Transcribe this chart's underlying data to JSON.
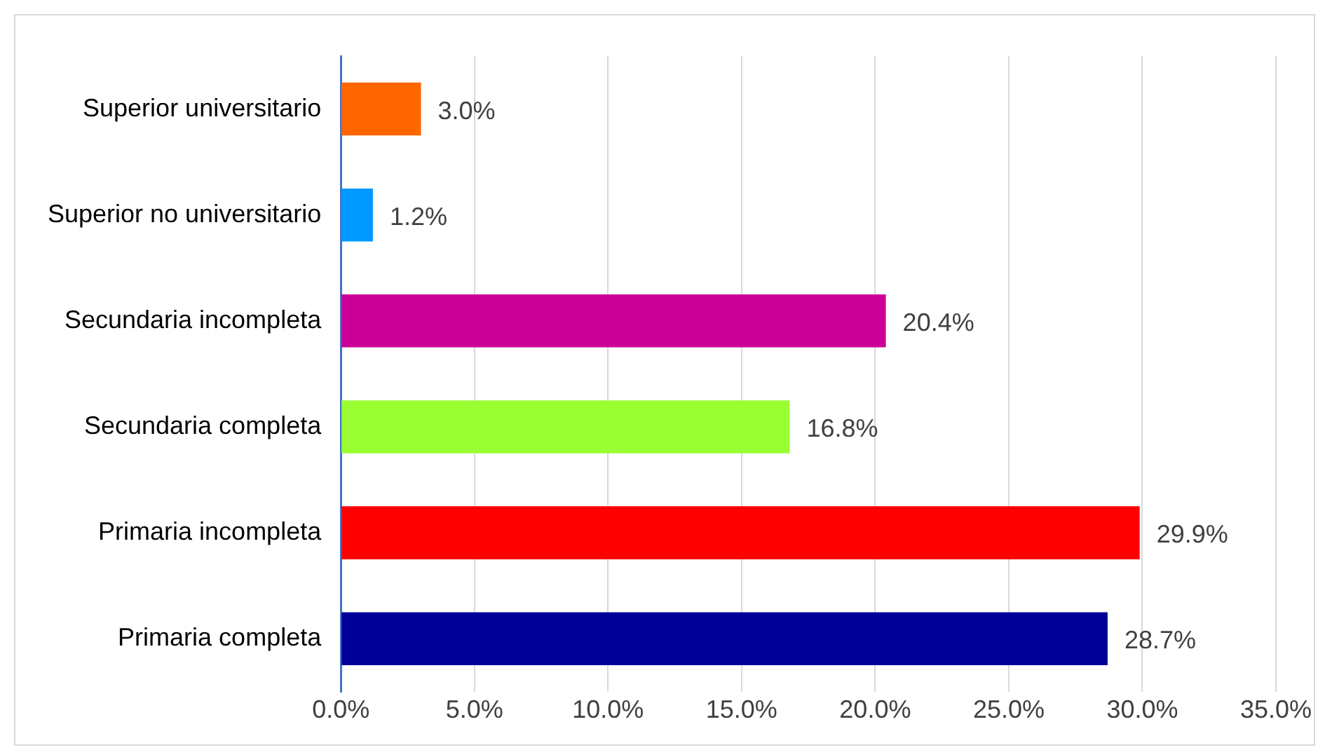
{
  "chart_data": {
    "type": "bar",
    "orientation": "horizontal",
    "categories": [
      "Superior universitario",
      "Superior no universitario",
      "Secundaria incompleta",
      "Secundaria completa",
      "Primaria incompleta",
      "Primaria completa"
    ],
    "values": [
      3.0,
      1.2,
      20.4,
      16.8,
      29.9,
      28.7
    ],
    "colors": [
      "#ff6600",
      "#0099ff",
      "#cc0099",
      "#99ff33",
      "#ff0000",
      "#000099"
    ],
    "value_labels": [
      "3.0%",
      "1.2%",
      "20.4%",
      "16.8%",
      "29.9%",
      "28.7%"
    ],
    "xlim": [
      0,
      35
    ],
    "xticks": [
      {
        "value": 0,
        "label": "0.0%"
      },
      {
        "value": 5,
        "label": "5.0%"
      },
      {
        "value": 10,
        "label": "10.0%"
      },
      {
        "value": 15,
        "label": "15.0%"
      },
      {
        "value": 20,
        "label": "20.0%"
      },
      {
        "value": 25,
        "label": "25.0%"
      },
      {
        "value": 30,
        "label": "30.0%"
      },
      {
        "value": 35,
        "label": "35.0%"
      }
    ],
    "grid": "x"
  }
}
